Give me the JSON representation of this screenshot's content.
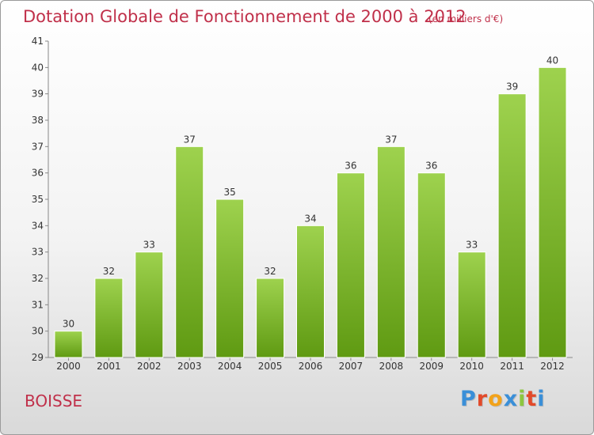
{
  "title": "Dotation Globale de Fonctionnement de 2000 à 2012",
  "unit": "(en milliers d'€)",
  "town": "BOISSE",
  "logo": {
    "letters": [
      "P",
      "r",
      "o",
      "x",
      "i",
      "t",
      "i"
    ],
    "colors": [
      "#3a8fd8",
      "#e24a2a",
      "#f2a21a",
      "#3a8fd8",
      "#8cc63f",
      "#e24a2a",
      "#3a8fd8"
    ]
  },
  "colors": {
    "bar_top": "#9ed24e",
    "bar_bottom": "#5f9a12",
    "title": "#c0304a"
  },
  "chart_data": {
    "type": "bar",
    "categories": [
      "2000",
      "2001",
      "2002",
      "2003",
      "2004",
      "2005",
      "2006",
      "2007",
      "2008",
      "2009",
      "2010",
      "2011",
      "2012"
    ],
    "values": [
      30,
      32,
      33,
      37,
      35,
      32,
      34,
      36,
      37,
      36,
      33,
      39,
      40
    ],
    "ylim": [
      29,
      41
    ],
    "yticks": [
      29,
      30,
      31,
      32,
      33,
      34,
      35,
      36,
      37,
      38,
      39,
      40,
      41
    ],
    "grid": false,
    "xlabel": "",
    "ylabel": ""
  }
}
